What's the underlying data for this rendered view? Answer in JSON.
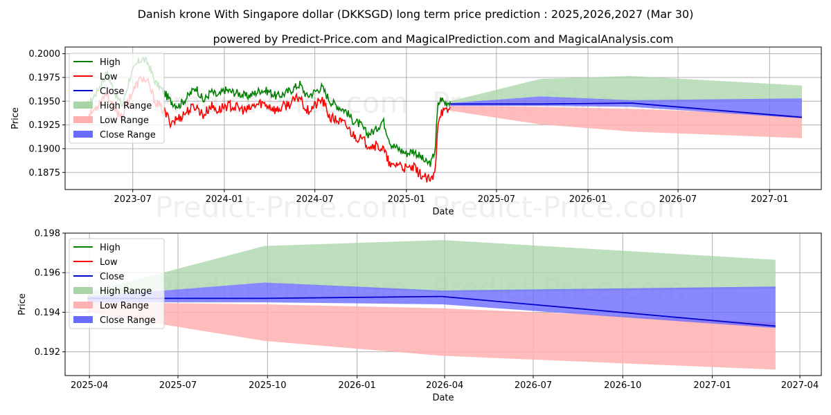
{
  "page": {
    "title": "Danish krone With Singapore dollar (DKKSGD) long term price prediction : 2025,2026,2027 (Mar 30)",
    "subtitle": "powered by Predict-Price.com and MagicalPrediction.com and MagicalAnalysis.com",
    "watermark": "Predict-Price.com"
  },
  "colors": {
    "high": "#008000",
    "low": "#ff0000",
    "close": "#0000cc",
    "high_range": "#a8d4a8",
    "low_range": "#ffb0b0",
    "close_range": "#6b6bff",
    "grid": "#b0b0b0"
  },
  "chart_data": [
    {
      "type": "line",
      "title": "",
      "xlabel": "Date",
      "ylabel": "Price",
      "grid": true,
      "legend_position": "top-left",
      "xlim": [
        "2023-02-15",
        "2027-04-15"
      ],
      "ylim": [
        0.1857,
        0.2007
      ],
      "x_ticks": [
        {
          "date": "2023-07-01",
          "label": "2023-07"
        },
        {
          "date": "2024-01-01",
          "label": "2024-01"
        },
        {
          "date": "2024-07-01",
          "label": "2024-07"
        },
        {
          "date": "2025-01-01",
          "label": "2025-01"
        },
        {
          "date": "2025-07-01",
          "label": "2025-07"
        },
        {
          "date": "2026-01-01",
          "label": "2026-01"
        },
        {
          "date": "2026-07-01",
          "label": "2026-07"
        },
        {
          "date": "2027-01-01",
          "label": "2027-01"
        }
      ],
      "y_ticks": [
        {
          "value": 0.1875,
          "label": "0.1875"
        },
        {
          "value": 0.19,
          "label": "0.1900"
        },
        {
          "value": 0.1925,
          "label": "0.1925"
        },
        {
          "value": 0.195,
          "label": "0.1950"
        },
        {
          "value": 0.1975,
          "label": "0.1975"
        },
        {
          "value": 0.2,
          "label": "0.2000"
        }
      ],
      "legend": [
        "High",
        "Low",
        "Close",
        "High Range",
        "Low Range",
        "Close Range"
      ],
      "history": {
        "x": [
          "2023-04-01",
          "2023-04-20",
          "2023-05-10",
          "2023-05-25",
          "2023-06-10",
          "2023-06-25",
          "2023-07-10",
          "2023-07-20",
          "2023-08-01",
          "2023-08-15",
          "2023-09-01",
          "2023-09-15",
          "2023-10-01",
          "2023-10-20",
          "2023-11-05",
          "2023-11-20",
          "2023-12-05",
          "2023-12-20",
          "2024-01-01",
          "2024-01-15",
          "2024-02-01",
          "2024-02-15",
          "2024-03-01",
          "2024-03-15",
          "2024-04-01",
          "2024-04-15",
          "2024-05-01",
          "2024-05-15",
          "2024-06-01",
          "2024-06-15",
          "2024-07-01",
          "2024-07-15",
          "2024-08-01",
          "2024-08-15",
          "2024-09-01",
          "2024-09-15",
          "2024-10-01",
          "2024-10-15",
          "2024-11-01",
          "2024-11-15",
          "2024-12-01",
          "2024-12-15",
          "2025-01-01",
          "2025-01-15",
          "2025-02-01",
          "2025-02-10",
          "2025-02-20",
          "2025-02-28",
          "2025-03-05",
          "2025-03-12",
          "2025-03-20",
          "2025-03-30"
        ],
        "high": [
          0.1945,
          0.196,
          0.198,
          0.196,
          0.1945,
          0.1975,
          0.199,
          0.1995,
          0.199,
          0.197,
          0.196,
          0.195,
          0.1945,
          0.1955,
          0.1965,
          0.195,
          0.196,
          0.1955,
          0.1962,
          0.196,
          0.1958,
          0.1955,
          0.1958,
          0.1962,
          0.196,
          0.1955,
          0.1958,
          0.1962,
          0.1968,
          0.1955,
          0.196,
          0.1965,
          0.195,
          0.1945,
          0.194,
          0.193,
          0.1925,
          0.1915,
          0.192,
          0.193,
          0.1905,
          0.19,
          0.1895,
          0.1898,
          0.189,
          0.1885,
          0.1885,
          0.19,
          0.1945,
          0.1953,
          0.1948,
          0.195
        ],
        "low": [
          0.1932,
          0.1945,
          0.196,
          0.194,
          0.1935,
          0.1955,
          0.1968,
          0.1975,
          0.1968,
          0.195,
          0.194,
          0.1928,
          0.1932,
          0.194,
          0.1945,
          0.1935,
          0.1945,
          0.194,
          0.1945,
          0.1945,
          0.1942,
          0.194,
          0.1945,
          0.1948,
          0.1945,
          0.194,
          0.1945,
          0.1948,
          0.1955,
          0.194,
          0.1945,
          0.1952,
          0.1932,
          0.193,
          0.1925,
          0.1915,
          0.191,
          0.1905,
          0.1903,
          0.19,
          0.188,
          0.1885,
          0.1878,
          0.188,
          0.1872,
          0.1868,
          0.1866,
          0.1875,
          0.1928,
          0.194,
          0.1938,
          0.1942
        ]
      },
      "forecast": {
        "x": [
          "2025-03-30",
          "2025-09-28",
          "2026-03-29",
          "2027-03-07"
        ],
        "high_upper": [
          0.195,
          0.19735,
          0.19765,
          0.19665
        ],
        "high_lower": [
          0.1948,
          0.1955,
          0.195,
          0.1952
        ],
        "low_upper": [
          0.1945,
          0.1944,
          0.1942,
          0.1935
        ],
        "low_lower": [
          0.194,
          0.19255,
          0.1918,
          0.1911
        ],
        "close_upper": [
          0.1948,
          0.1955,
          0.1951,
          0.1953
        ],
        "close_lower": [
          0.1945,
          0.1945,
          0.1944,
          0.1932
        ],
        "close": [
          0.1947,
          0.1947,
          0.1948,
          0.1933
        ]
      }
    },
    {
      "type": "line",
      "title": "",
      "xlabel": "Date",
      "ylabel": "Price",
      "grid": true,
      "legend_position": "top-left",
      "xlim": [
        "2025-03-07",
        "2027-04-23"
      ],
      "ylim": [
        0.1908,
        0.198
      ],
      "x_ticks": [
        {
          "date": "2025-04-01",
          "label": "2025-04"
        },
        {
          "date": "2025-07-01",
          "label": "2025-07"
        },
        {
          "date": "2025-10-01",
          "label": "2025-10"
        },
        {
          "date": "2026-01-01",
          "label": "2026-01"
        },
        {
          "date": "2026-04-01",
          "label": "2026-04"
        },
        {
          "date": "2026-07-01",
          "label": "2026-07"
        },
        {
          "date": "2026-10-01",
          "label": "2026-10"
        },
        {
          "date": "2027-01-01",
          "label": "2027-01"
        },
        {
          "date": "2027-04-01",
          "label": "2027-04"
        }
      ],
      "y_ticks": [
        {
          "value": 0.192,
          "label": "0.192"
        },
        {
          "value": 0.194,
          "label": "0.194"
        },
        {
          "value": 0.196,
          "label": "0.196"
        },
        {
          "value": 0.198,
          "label": "0.198"
        }
      ],
      "legend": [
        "High",
        "Low",
        "Close",
        "High Range",
        "Low Range",
        "Close Range"
      ],
      "forecast": {
        "x": [
          "2025-03-30",
          "2025-09-28",
          "2026-03-29",
          "2027-03-07"
        ],
        "high_upper": [
          0.195,
          0.19735,
          0.19765,
          0.19665
        ],
        "high_lower": [
          0.1948,
          0.1955,
          0.195,
          0.1952
        ],
        "low_upper": [
          0.1945,
          0.1944,
          0.1942,
          0.1935
        ],
        "low_lower": [
          0.194,
          0.19255,
          0.1918,
          0.1911
        ],
        "close_upper": [
          0.1948,
          0.1955,
          0.1951,
          0.1953
        ],
        "close_lower": [
          0.1945,
          0.1945,
          0.1944,
          0.1932
        ],
        "close": [
          0.1947,
          0.1947,
          0.1948,
          0.1933
        ]
      }
    }
  ]
}
